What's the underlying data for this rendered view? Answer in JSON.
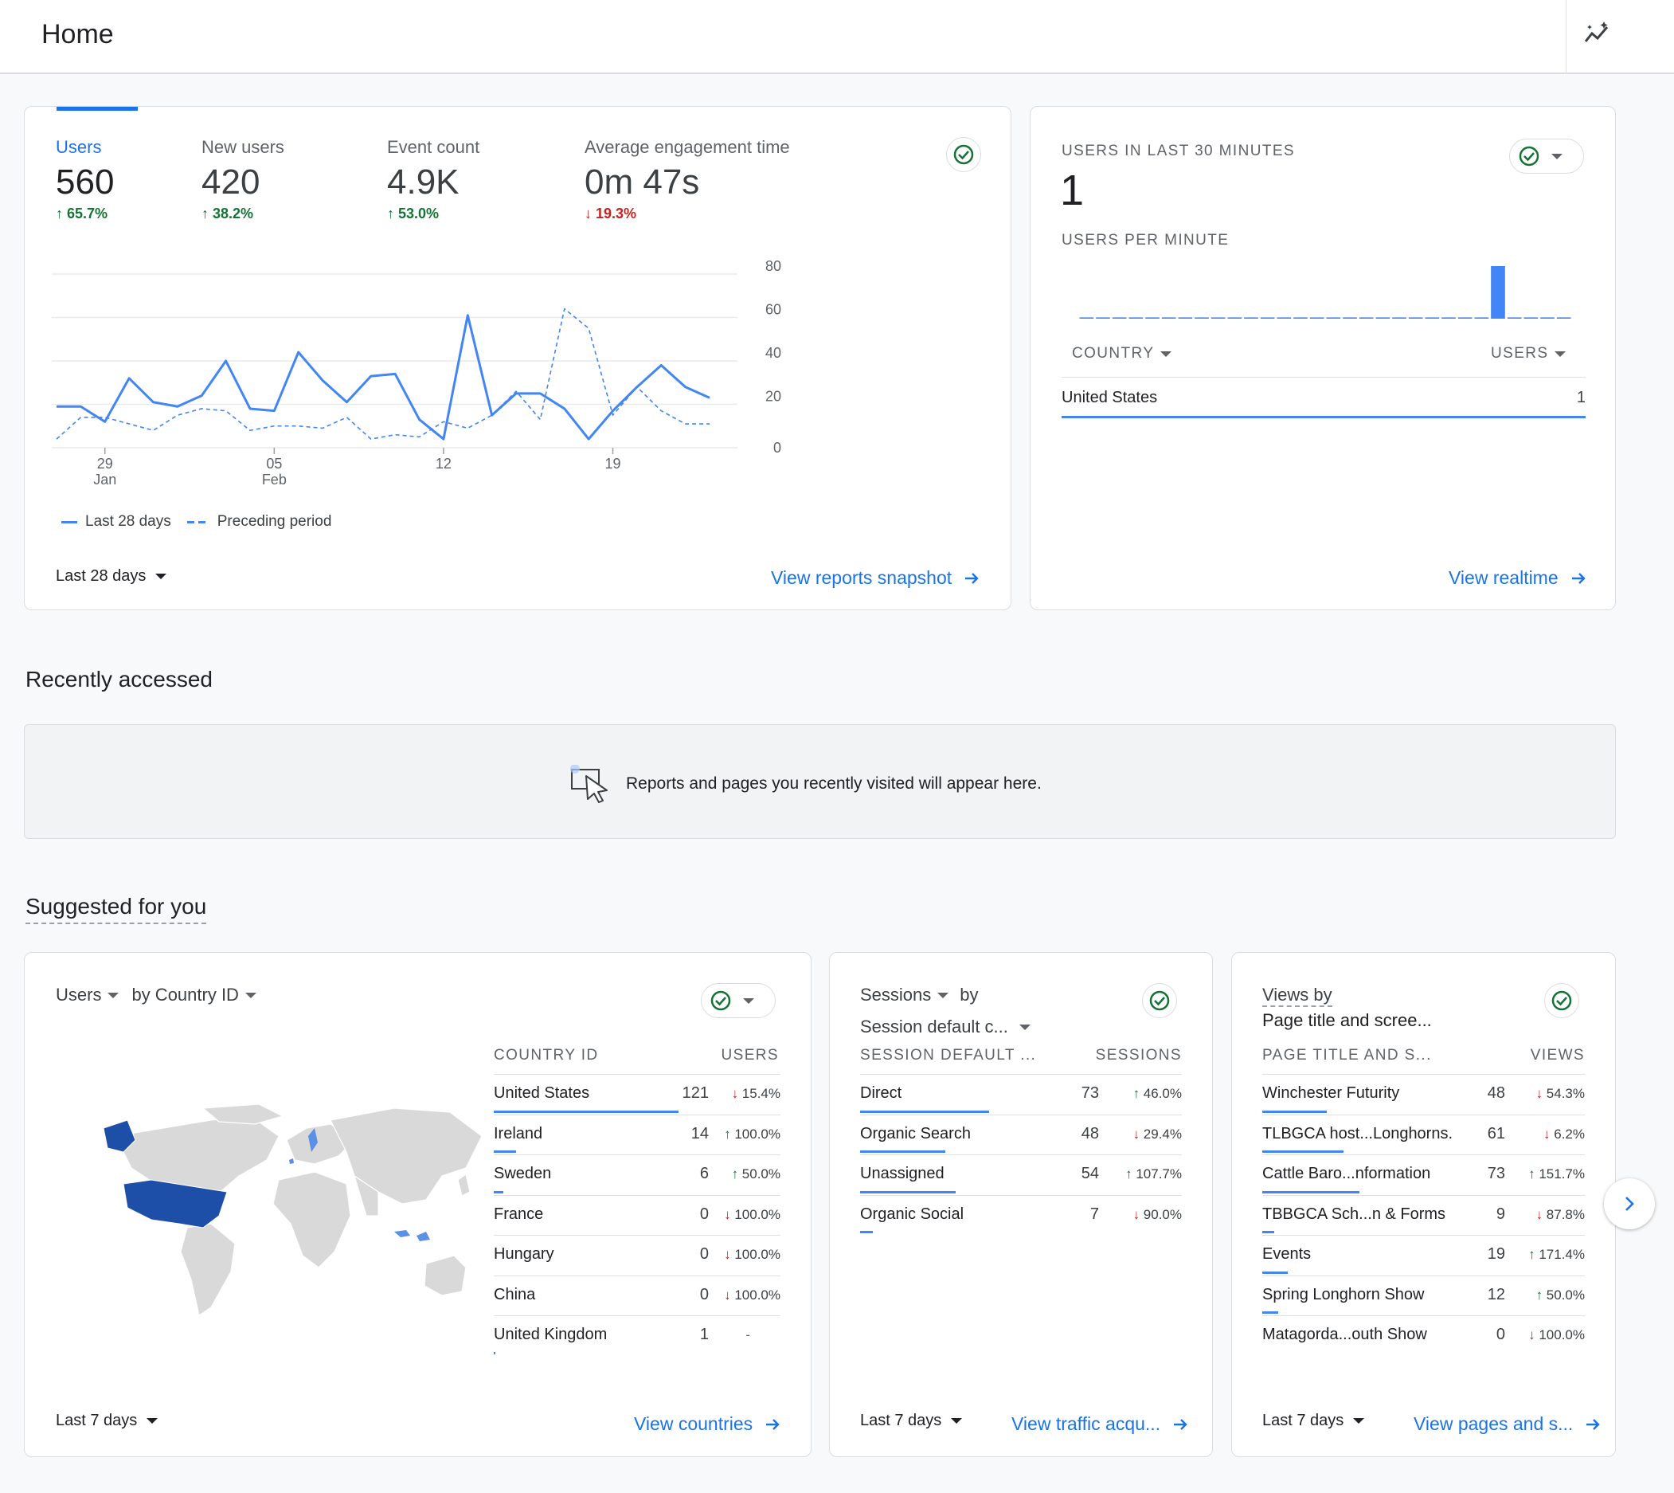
{
  "header": {
    "title": "Home",
    "insights_icon": "insights-icon"
  },
  "overview": {
    "metrics": [
      {
        "label": "Users",
        "value": "560",
        "delta": "65.7%",
        "dir": "up"
      },
      {
        "label": "New users",
        "value": "420",
        "delta": "38.2%",
        "dir": "up"
      },
      {
        "label": "Event count",
        "value": "4.9K",
        "delta": "53.0%",
        "dir": "up"
      },
      {
        "label": "Average engagement time",
        "value": "0m 47s",
        "delta": "19.3%",
        "dir": "down"
      }
    ],
    "date_range": "Last 28 days",
    "link": "View reports snapshot",
    "legend": {
      "current": "Last 28 days",
      "previous": "Preceding period"
    }
  },
  "chart_data": {
    "type": "line",
    "x_tick_labels": [
      {
        "day": "29",
        "month": "Jan"
      },
      {
        "day": "05",
        "month": "Feb"
      },
      {
        "day": "12",
        "month": ""
      },
      {
        "day": "19",
        "month": ""
      }
    ],
    "y_ticks": [
      0,
      20,
      40,
      60,
      80
    ],
    "ylim": [
      0,
      80
    ],
    "series": [
      {
        "name": "Last 28 days",
        "style": "solid",
        "values": [
          19,
          19,
          12,
          32,
          21,
          19,
          24,
          40,
          18,
          17,
          44,
          31,
          21,
          33,
          34,
          13,
          4,
          61,
          15,
          25,
          25,
          18,
          4,
          17,
          28,
          38,
          28,
          23
        ]
      },
      {
        "name": "Preceding period",
        "style": "dashed",
        "values": [
          4,
          14,
          14,
          11,
          8,
          15,
          18,
          17,
          8,
          10,
          10,
          9,
          14,
          4,
          6,
          5,
          12,
          9,
          15,
          26,
          13,
          64,
          55,
          15,
          28,
          17,
          11,
          11
        ]
      }
    ],
    "grid": true,
    "legend_position": "bottom-left"
  },
  "realtime": {
    "title": "USERS IN LAST 30 MINUTES",
    "value": "1",
    "subtitle": "USERS PER MINUTE",
    "per_minute": [
      0,
      0,
      0,
      0,
      0,
      0,
      0,
      0,
      0,
      0,
      0,
      0,
      0,
      0,
      0,
      0,
      0,
      0,
      0,
      0,
      0,
      0,
      0,
      0,
      0,
      1,
      0,
      0,
      0,
      0
    ],
    "col_country": "COUNTRY",
    "col_users": "USERS",
    "rows": [
      {
        "country": "United States",
        "users": "1"
      }
    ],
    "link": "View realtime"
  },
  "recent": {
    "title": "Recently accessed",
    "empty_text": "Reports and pages you recently visited will appear here."
  },
  "suggested": {
    "title": "Suggested for you",
    "country_card": {
      "metric": "Users",
      "by": "by Country ID",
      "col1": "COUNTRY ID",
      "col2": "USERS",
      "rows": [
        {
          "name": "United States",
          "value": "121",
          "delta": "15.4%",
          "dir": "down",
          "bar": 1.0
        },
        {
          "name": "Ireland",
          "value": "14",
          "delta": "100.0%",
          "dir": "up",
          "bar": 0.12
        },
        {
          "name": "Sweden",
          "value": "6",
          "delta": "50.0%",
          "dir": "up",
          "bar": 0.05
        },
        {
          "name": "France",
          "value": "0",
          "delta": "100.0%",
          "dir": "down",
          "bar": 0
        },
        {
          "name": "Hungary",
          "value": "0",
          "delta": "100.0%",
          "dir": "down",
          "bar": 0
        },
        {
          "name": "China",
          "value": "0",
          "delta": "100.0%",
          "dir": "down",
          "bar": 0
        },
        {
          "name": "United Kingdom",
          "value": "1",
          "delta": "-",
          "dir": "none",
          "bar": 0.01
        }
      ],
      "date_range": "Last 7 days",
      "link": "View countries"
    },
    "sessions_card": {
      "metric": "Sessions",
      "by": "by",
      "dimension": "Session default c...",
      "col1": "SESSION DEFAULT ...",
      "col2": "SESSIONS",
      "rows": [
        {
          "name": "Direct",
          "value": "73",
          "delta": "46.0%",
          "dir": "up",
          "bar": 1.0
        },
        {
          "name": "Organic Search",
          "value": "48",
          "delta": "29.4%",
          "dir": "down",
          "bar": 0.66
        },
        {
          "name": "Unassigned",
          "value": "54",
          "delta": "107.7%",
          "dir": "up",
          "bar": 0.74
        },
        {
          "name": "Organic Social",
          "value": "7",
          "delta": "90.0%",
          "dir": "down",
          "bar": 0.1
        }
      ],
      "date_range": "Last 7 days",
      "link": "View traffic acqu..."
    },
    "views_card": {
      "metric": "Views by",
      "dimension": "Page title and scree...",
      "col1": "PAGE TITLE AND S...",
      "col2": "VIEWS",
      "rows": [
        {
          "name": "Winchester Futurity",
          "value": "48",
          "delta": "54.3%",
          "dir": "down",
          "bar": 0.66
        },
        {
          "name": "TLBGCA host...Longhorns.",
          "value": "61",
          "delta": "6.2%",
          "dir": "down",
          "bar": 0.84
        },
        {
          "name": "Cattle Baro...nformation",
          "value": "73",
          "delta": "151.7%",
          "dir": "up",
          "bar": 1.0
        },
        {
          "name": "TBBGCA Sch...n & Forms",
          "value": "9",
          "delta": "87.8%",
          "dir": "down",
          "bar": 0.12
        },
        {
          "name": "Events",
          "value": "19",
          "delta": "171.4%",
          "dir": "up",
          "bar": 0.26
        },
        {
          "name": "Spring Longhorn Show",
          "value": "12",
          "delta": "50.0%",
          "dir": "up",
          "bar": 0.16
        },
        {
          "name": "Matagorda...outh Show",
          "value": "0",
          "delta": "100.0%",
          "dir": "down",
          "bar": 0
        }
      ],
      "date_range": "Last 7 days",
      "link": "View pages and s..."
    }
  },
  "colors": {
    "accent": "#1a73e8",
    "series": "#4285f4",
    "up": "#137333",
    "down": "#c5221f",
    "map_highlight": "#1e4fa8",
    "map_light": "#5c8fe6",
    "map_base": "#d9d9d9"
  }
}
